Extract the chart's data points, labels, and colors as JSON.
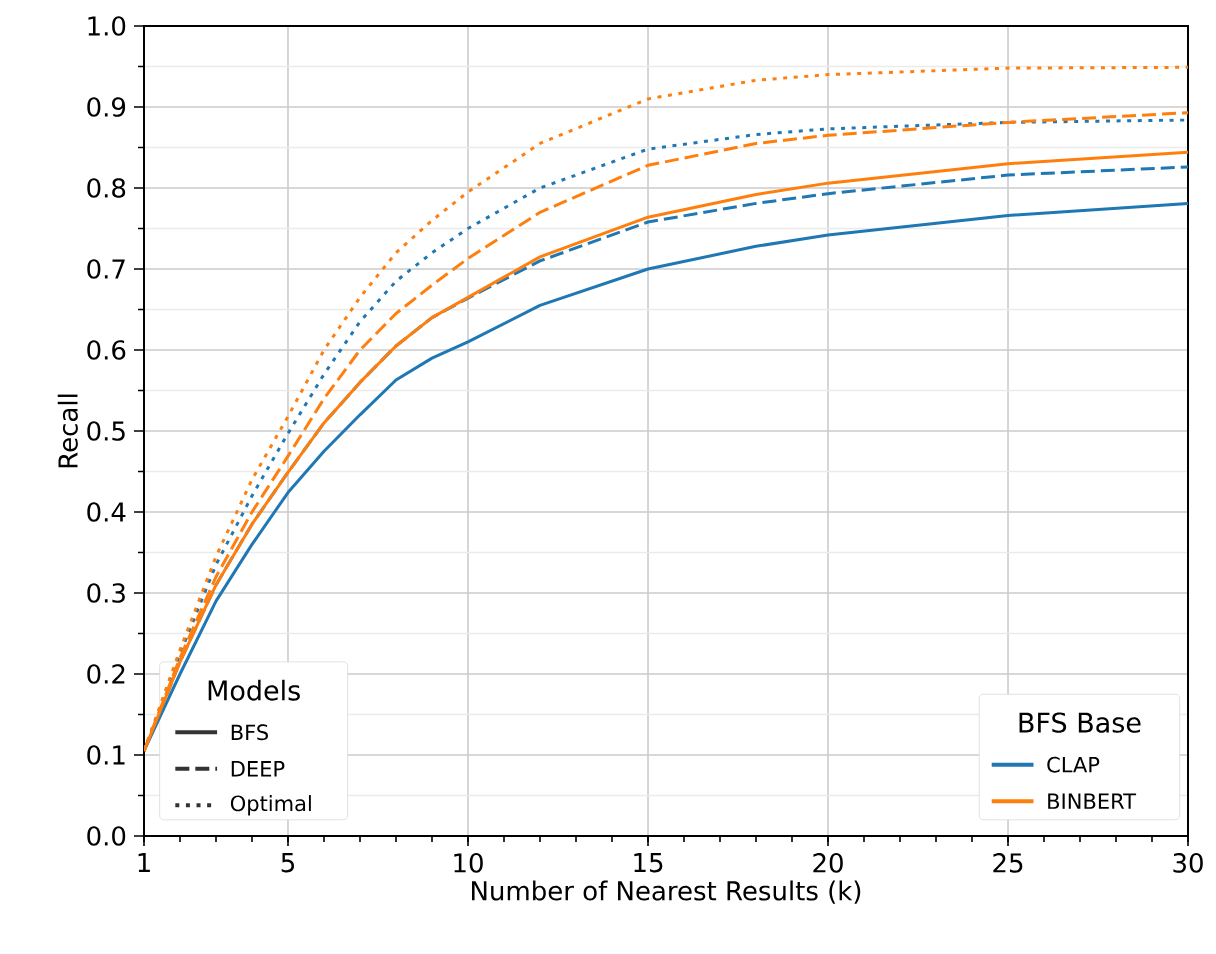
{
  "chart_data": {
    "type": "line",
    "xlabel": "Number of Nearest Results (k)",
    "ylabel": "Recall",
    "x": [
      1,
      2,
      3,
      4,
      5,
      6,
      7,
      8,
      9,
      10,
      12,
      15,
      18,
      20,
      25,
      30
    ],
    "series": [
      {
        "color": "#1f77b4",
        "line_style": "solid",
        "values": [
          0.105,
          0.2,
          0.29,
          0.36,
          0.424,
          0.475,
          0.52,
          0.563,
          0.59,
          0.61,
          0.655,
          0.7,
          0.728,
          0.742,
          0.766,
          0.781
        ]
      },
      {
        "color": "#1f77b4",
        "line_style": "dashed",
        "values": [
          0.105,
          0.215,
          0.31,
          0.385,
          0.449,
          0.51,
          0.56,
          0.605,
          0.64,
          0.664,
          0.71,
          0.758,
          0.781,
          0.793,
          0.816,
          0.826
        ]
      },
      {
        "color": "#1f77b4",
        "line_style": "dotted",
        "values": [
          0.105,
          0.225,
          0.335,
          0.42,
          0.497,
          0.57,
          0.635,
          0.685,
          0.72,
          0.75,
          0.8,
          0.848,
          0.866,
          0.873,
          0.881,
          0.884
        ]
      },
      {
        "color": "#ff7f0e",
        "line_style": "solid",
        "values": [
          0.105,
          0.215,
          0.31,
          0.385,
          0.449,
          0.51,
          0.56,
          0.605,
          0.64,
          0.665,
          0.715,
          0.764,
          0.792,
          0.806,
          0.83,
          0.844
        ]
      },
      {
        "color": "#ff7f0e",
        "line_style": "dashed",
        "values": [
          0.105,
          0.22,
          0.32,
          0.4,
          0.469,
          0.54,
          0.6,
          0.645,
          0.68,
          0.713,
          0.77,
          0.828,
          0.855,
          0.865,
          0.881,
          0.893
        ]
      },
      {
        "color": "#ff7f0e",
        "line_style": "dotted",
        "values": [
          0.105,
          0.23,
          0.345,
          0.44,
          0.518,
          0.6,
          0.665,
          0.72,
          0.76,
          0.795,
          0.855,
          0.91,
          0.933,
          0.94,
          0.948,
          0.949
        ]
      }
    ],
    "xlim": [
      1,
      30
    ],
    "xticks": [
      1,
      5,
      10,
      15,
      20,
      25,
      30
    ],
    "ylim": [
      0,
      1
    ],
    "yticks": [
      {
        "value": 0,
        "label": "0.0"
      },
      0.1,
      0.2,
      0.3,
      0.4,
      0.5,
      0.6,
      0.7,
      0.8,
      0.9,
      {
        "value": 1,
        "label": "1.0"
      }
    ],
    "grid": true,
    "marker": "none",
    "annotations": [
      "Models",
      "BFS",
      "DEEP",
      "Optimal",
      "BFS Base",
      "CLAP",
      "BINBERT"
    ]
  }
}
